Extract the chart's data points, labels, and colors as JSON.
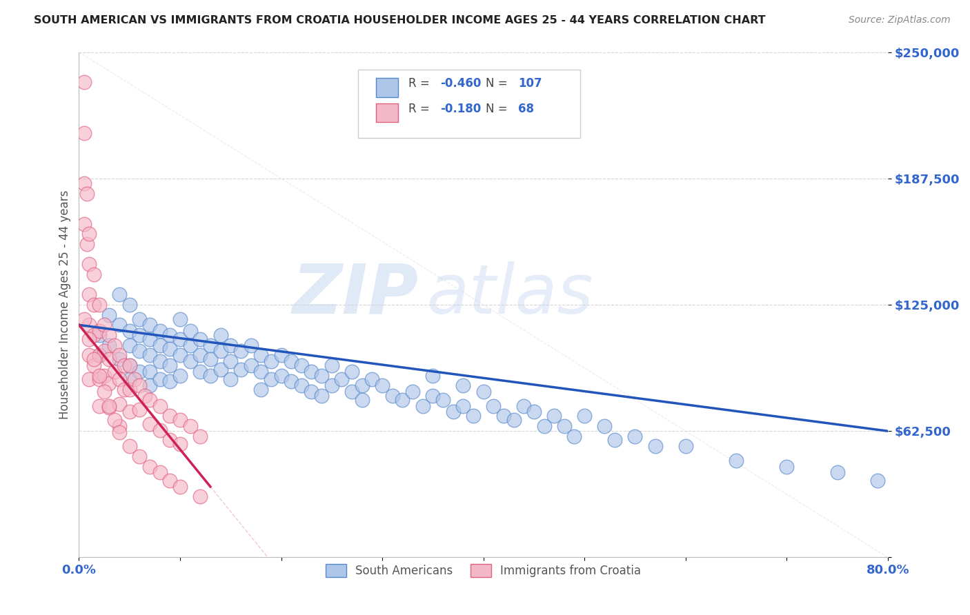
{
  "title": "SOUTH AMERICAN VS IMMIGRANTS FROM CROATIA HOUSEHOLDER INCOME AGES 25 - 44 YEARS CORRELATION CHART",
  "source": "Source: ZipAtlas.com",
  "ylabel": "Householder Income Ages 25 - 44 years",
  "xlim": [
    0.0,
    0.8
  ],
  "ylim": [
    0,
    250000
  ],
  "yticks": [
    0,
    62500,
    125000,
    187500,
    250000
  ],
  "ytick_labels": [
    "",
    "$62,500",
    "$125,000",
    "$187,500",
    "$250,000"
  ],
  "xtick_labels": [
    "0.0%",
    "",
    "",
    "",
    "",
    "",
    "",
    "",
    "80.0%"
  ],
  "xticks": [
    0.0,
    0.1,
    0.2,
    0.3,
    0.4,
    0.5,
    0.6,
    0.7,
    0.8
  ],
  "blue_color": "#aec6e8",
  "blue_edge_color": "#5588cc",
  "pink_color": "#f5b8c8",
  "pink_edge_color": "#e06080",
  "blue_line_color": "#2255bb",
  "pink_line_color": "#cc2255",
  "R_blue": -0.46,
  "N_blue": 107,
  "R_pink": -0.18,
  "N_pink": 68,
  "legend_label_blue": "South Americans",
  "legend_label_pink": "Immigrants from Croatia",
  "watermark_zip": "ZIP",
  "watermark_atlas": "atlas",
  "title_color": "#222222",
  "axis_label_color": "#555555",
  "tick_color": "#3366cc",
  "grid_color": "#cccccc",
  "background_color": "#ffffff",
  "blue_line_x0": 0.0,
  "blue_line_x1": 0.8,
  "blue_line_y0": 115000,
  "blue_line_y1": 62500,
  "pink_line_x0": 0.0,
  "pink_line_x1": 0.13,
  "pink_line_y0": 115000,
  "pink_line_y1": 35000,
  "blue_scatter_x": [
    0.02,
    0.02,
    0.03,
    0.03,
    0.04,
    0.04,
    0.04,
    0.05,
    0.05,
    0.05,
    0.05,
    0.05,
    0.06,
    0.06,
    0.06,
    0.06,
    0.07,
    0.07,
    0.07,
    0.07,
    0.07,
    0.08,
    0.08,
    0.08,
    0.08,
    0.09,
    0.09,
    0.09,
    0.09,
    0.1,
    0.1,
    0.1,
    0.1,
    0.11,
    0.11,
    0.11,
    0.12,
    0.12,
    0.12,
    0.13,
    0.13,
    0.13,
    0.14,
    0.14,
    0.14,
    0.15,
    0.15,
    0.15,
    0.16,
    0.16,
    0.17,
    0.17,
    0.18,
    0.18,
    0.18,
    0.19,
    0.19,
    0.2,
    0.2,
    0.21,
    0.21,
    0.22,
    0.22,
    0.23,
    0.23,
    0.24,
    0.24,
    0.25,
    0.25,
    0.26,
    0.27,
    0.27,
    0.28,
    0.28,
    0.29,
    0.3,
    0.31,
    0.32,
    0.33,
    0.34,
    0.35,
    0.35,
    0.36,
    0.37,
    0.38,
    0.38,
    0.39,
    0.4,
    0.41,
    0.42,
    0.43,
    0.44,
    0.45,
    0.46,
    0.47,
    0.48,
    0.49,
    0.5,
    0.52,
    0.53,
    0.55,
    0.57,
    0.6,
    0.65,
    0.7,
    0.75,
    0.79
  ],
  "blue_scatter_y": [
    110000,
    100000,
    120000,
    105000,
    130000,
    115000,
    98000,
    125000,
    112000,
    105000,
    95000,
    88000,
    118000,
    110000,
    102000,
    92000,
    115000,
    108000,
    100000,
    92000,
    85000,
    112000,
    105000,
    97000,
    88000,
    110000,
    103000,
    95000,
    87000,
    118000,
    108000,
    100000,
    90000,
    112000,
    105000,
    97000,
    108000,
    100000,
    92000,
    105000,
    98000,
    90000,
    110000,
    102000,
    93000,
    105000,
    97000,
    88000,
    102000,
    93000,
    105000,
    95000,
    100000,
    92000,
    83000,
    97000,
    88000,
    100000,
    90000,
    97000,
    87000,
    95000,
    85000,
    92000,
    82000,
    90000,
    80000,
    95000,
    85000,
    88000,
    82000,
    92000,
    85000,
    78000,
    88000,
    85000,
    80000,
    78000,
    82000,
    75000,
    90000,
    80000,
    78000,
    72000,
    85000,
    75000,
    70000,
    82000,
    75000,
    70000,
    68000,
    75000,
    72000,
    65000,
    70000,
    65000,
    60000,
    70000,
    65000,
    58000,
    60000,
    55000,
    55000,
    48000,
    45000,
    42000,
    38000
  ],
  "pink_scatter_x": [
    0.005,
    0.005,
    0.005,
    0.005,
    0.008,
    0.008,
    0.01,
    0.01,
    0.01,
    0.01,
    0.01,
    0.01,
    0.015,
    0.015,
    0.015,
    0.015,
    0.02,
    0.02,
    0.02,
    0.02,
    0.02,
    0.025,
    0.025,
    0.025,
    0.03,
    0.03,
    0.03,
    0.03,
    0.035,
    0.035,
    0.04,
    0.04,
    0.04,
    0.04,
    0.045,
    0.045,
    0.05,
    0.05,
    0.05,
    0.055,
    0.06,
    0.06,
    0.065,
    0.07,
    0.07,
    0.08,
    0.08,
    0.09,
    0.09,
    0.1,
    0.1,
    0.11,
    0.12,
    0.005,
    0.01,
    0.015,
    0.02,
    0.025,
    0.03,
    0.035,
    0.04,
    0.05,
    0.06,
    0.07,
    0.08,
    0.09,
    0.1,
    0.12
  ],
  "pink_scatter_y": [
    235000,
    210000,
    185000,
    165000,
    180000,
    155000,
    160000,
    145000,
    130000,
    115000,
    100000,
    88000,
    140000,
    125000,
    110000,
    95000,
    125000,
    112000,
    100000,
    88000,
    75000,
    115000,
    102000,
    90000,
    110000,
    98000,
    86000,
    74000,
    105000,
    92000,
    100000,
    88000,
    76000,
    65000,
    95000,
    83000,
    95000,
    83000,
    72000,
    88000,
    85000,
    73000,
    80000,
    78000,
    66000,
    75000,
    63000,
    70000,
    58000,
    68000,
    56000,
    65000,
    60000,
    118000,
    108000,
    98000,
    90000,
    82000,
    75000,
    68000,
    62000,
    55000,
    50000,
    45000,
    42000,
    38000,
    35000,
    30000
  ]
}
